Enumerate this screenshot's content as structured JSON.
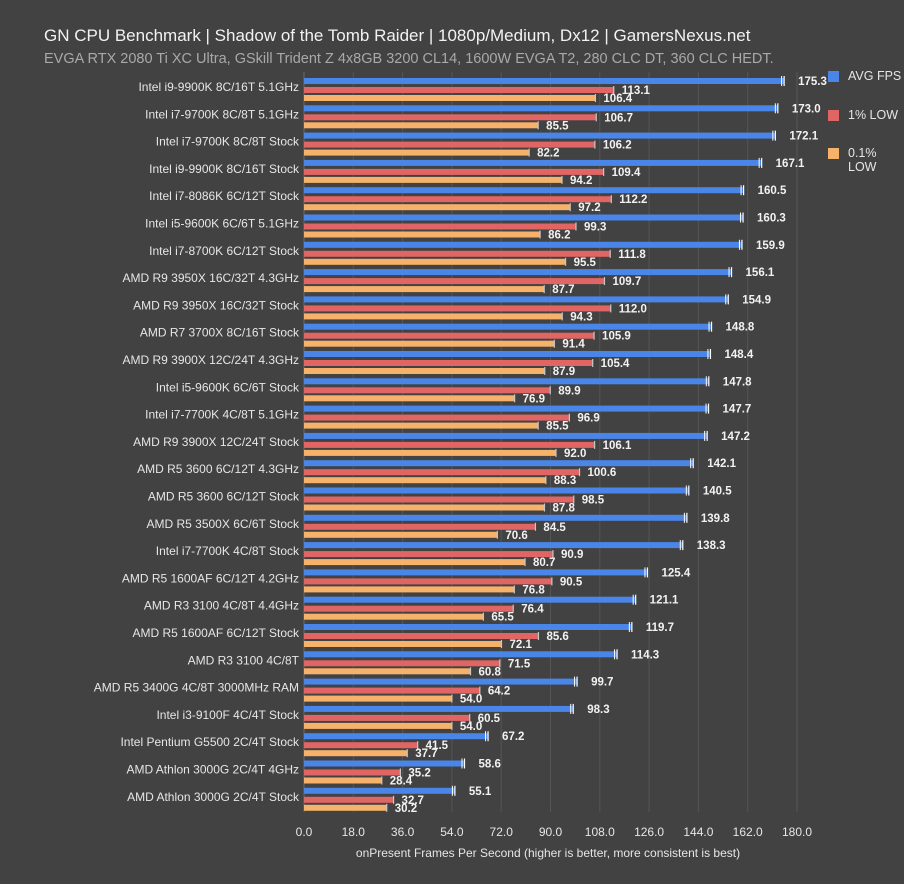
{
  "chart_data": {
    "type": "bar",
    "orientation": "horizontal",
    "title": "GN CPU Benchmark | Shadow of the Tomb Raider | 1080p/Medium, Dx12 | GamersNexus.net",
    "subtitle": "EVGA RTX 2080 Ti XC Ultra, GSkill Trident Z 4x8GB 3200 CL14, 1600W EVGA T2, 280 CLC DT, 360 CLC HEDT.",
    "xlabel": "onPresent Frames Per Second (higher is better, more consistent is best)",
    "xlim": [
      0,
      180
    ],
    "xticks": [
      "0.0",
      "18.0",
      "36.0",
      "54.0",
      "72.0",
      "90.0",
      "108.0",
      "126.0",
      "144.0",
      "162.0",
      "180.0"
    ],
    "grid": true,
    "legend_position": "right",
    "categories": [
      "Intel i9-9900K 8C/16T 5.1GHz",
      "Intel i7-9700K 8C/8T 5.1GHz",
      "Intel i7-9700K 8C/8T Stock",
      "Intel i9-9900K 8C/16T Stock",
      "Intel i7-8086K 6C/12T Stock",
      "Intel i5-9600K 6C/6T 5.1GHz",
      "Intel i7-8700K 6C/12T Stock",
      "AMD R9 3950X 16C/32T 4.3GHz",
      "AMD R9 3950X 16C/32T Stock",
      "AMD R7 3700X 8C/16T Stock",
      "AMD R9 3900X 12C/24T 4.3GHz",
      "Intel i5-9600K 6C/6T Stock",
      "Intel i7-7700K 4C/8T 5.1GHz",
      "AMD R9 3900X 12C/24T Stock",
      "AMD R5 3600 6C/12T 4.3GHz",
      "AMD R5 3600 6C/12T Stock",
      "AMD R5 3500X 6C/6T Stock",
      "Intel i7-7700K 4C/8T Stock",
      "AMD R5 1600AF 6C/12T 4.2GHz",
      "AMD R3 3100 4C/8T 4.4GHz",
      "AMD R5 1600AF 6C/12T Stock",
      "AMD R3 3100 4C/8T",
      "AMD R5 3400G 4C/8T 3000MHz RAM",
      "Intel i3-9100F 4C/4T Stock",
      "Intel Pentium G5500 2C/4T Stock",
      "AMD Athlon 3000G 2C/4T 4GHz",
      "AMD Athlon 3000G 2C/4T Stock"
    ],
    "series": [
      {
        "name": "AVG FPS",
        "color": "#4a86e8",
        "values": [
          175.3,
          173.0,
          172.1,
          167.1,
          160.5,
          160.3,
          159.9,
          156.1,
          154.9,
          148.8,
          148.4,
          147.8,
          147.7,
          147.2,
          142.1,
          140.5,
          139.8,
          138.3,
          125.4,
          121.1,
          119.7,
          114.3,
          99.7,
          98.3,
          67.2,
          58.6,
          55.1
        ],
        "labels": [
          "175.3",
          "173.0",
          "172.1",
          "167.1",
          "160.5",
          "160.3",
          "159.9",
          "156.1",
          "154.9",
          "148.8",
          "148.4",
          "147.8",
          "147.7",
          "147.2",
          "142.1",
          "140.5",
          "139.8",
          "138.3",
          "125.4",
          "121.1",
          "119.7",
          "114.3",
          "99.7",
          "98.3",
          "67.2",
          "58.6",
          "55.1"
        ]
      },
      {
        "name": "1% LOW",
        "color": "#e06666",
        "values": [
          113.1,
          106.7,
          106.2,
          109.4,
          112.2,
          99.3,
          111.8,
          109.7,
          112.0,
          105.9,
          105.4,
          89.9,
          96.9,
          106.1,
          100.6,
          98.5,
          84.5,
          90.9,
          90.5,
          76.4,
          85.6,
          71.5,
          64.2,
          60.5,
          41.5,
          35.2,
          32.7
        ],
        "labels": [
          "113.1",
          "106.7",
          "106.2",
          "109.4",
          "112.2",
          "99.3",
          "111.8",
          "109.7",
          "112.0",
          "105.9",
          "105.4",
          "89.9",
          "96.9",
          "106.1",
          "100.6",
          "98.5",
          "84.5",
          "90.9",
          "90.5",
          "76.4",
          "85.6",
          "71.5",
          "64.2",
          "60.5",
          "41.5",
          "35.2",
          "32.7"
        ]
      },
      {
        "name": "0.1% LOW",
        "color": "#f6b26b",
        "values": [
          106.4,
          85.5,
          82.2,
          94.2,
          97.2,
          86.2,
          95.5,
          87.7,
          94.3,
          91.4,
          87.9,
          76.9,
          85.5,
          92.0,
          88.3,
          87.8,
          70.6,
          80.7,
          76.8,
          65.5,
          72.1,
          60.8,
          54.0,
          54.0,
          37.7,
          28.4,
          30.2
        ],
        "labels": [
          "106.4",
          "85.5",
          "82.2",
          "94.2",
          "97.2",
          "86.2",
          "95.5",
          "87.7",
          "94.3",
          "91.4",
          "87.9",
          "76.9",
          "85.5",
          "92.0",
          "88.3",
          "87.8",
          "70.6",
          "80.7",
          "76.8",
          "65.5",
          "72.1",
          "60.8",
          "54.0",
          "54.0",
          "37.7",
          "28.4",
          "30.2"
        ]
      }
    ]
  }
}
